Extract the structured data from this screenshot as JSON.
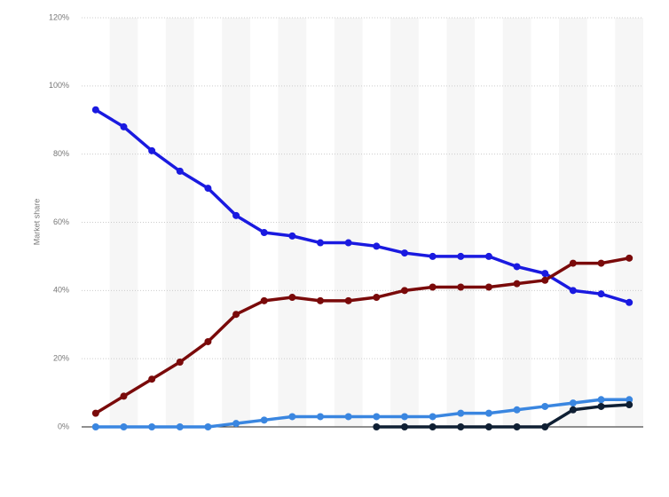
{
  "chart_data": {
    "type": "line",
    "y_label": "Market share",
    "categories": [
      null,
      null,
      null,
      null,
      null,
      null,
      null,
      null,
      null,
      null,
      null,
      null,
      null,
      null,
      null,
      null,
      null,
      null,
      null,
      null
    ],
    "series": [
      {
        "color": "#1a1ae0",
        "values": [
          93,
          88,
          81,
          75,
          70,
          62,
          57,
          56,
          54,
          54,
          53,
          51,
          50,
          50,
          50,
          47,
          45,
          40,
          39,
          36.5
        ]
      },
      {
        "color": "#7a0a0a",
        "values": [
          4,
          9,
          14,
          19,
          25,
          33,
          37,
          38,
          37,
          37,
          38,
          40,
          41,
          41,
          41,
          42,
          43,
          48,
          48,
          49.5
        ]
      },
      {
        "color": "#3a86e0",
        "values": [
          0,
          0,
          0,
          0,
          0,
          1,
          2,
          3,
          3,
          3,
          3,
          3,
          3,
          4,
          4,
          5,
          6,
          7,
          8,
          8
        ]
      },
      {
        "color": "#0f1f33",
        "values": [
          null,
          null,
          null,
          null,
          null,
          null,
          null,
          null,
          null,
          null,
          0,
          0,
          0,
          0,
          0,
          0,
          0,
          5,
          6,
          6.5
        ]
      }
    ],
    "ylim": [
      0,
      120
    ],
    "yticks": [
      {
        "value": 0,
        "label": "0%"
      },
      {
        "value": 20,
        "label": "20%"
      },
      {
        "value": 40,
        "label": "40%"
      },
      {
        "value": 60,
        "label": "60%"
      },
      {
        "value": 80,
        "label": "80%"
      },
      {
        "value": 100,
        "label": "100%"
      },
      {
        "value": 120,
        "label": "120%"
      }
    ],
    "grid": true
  }
}
